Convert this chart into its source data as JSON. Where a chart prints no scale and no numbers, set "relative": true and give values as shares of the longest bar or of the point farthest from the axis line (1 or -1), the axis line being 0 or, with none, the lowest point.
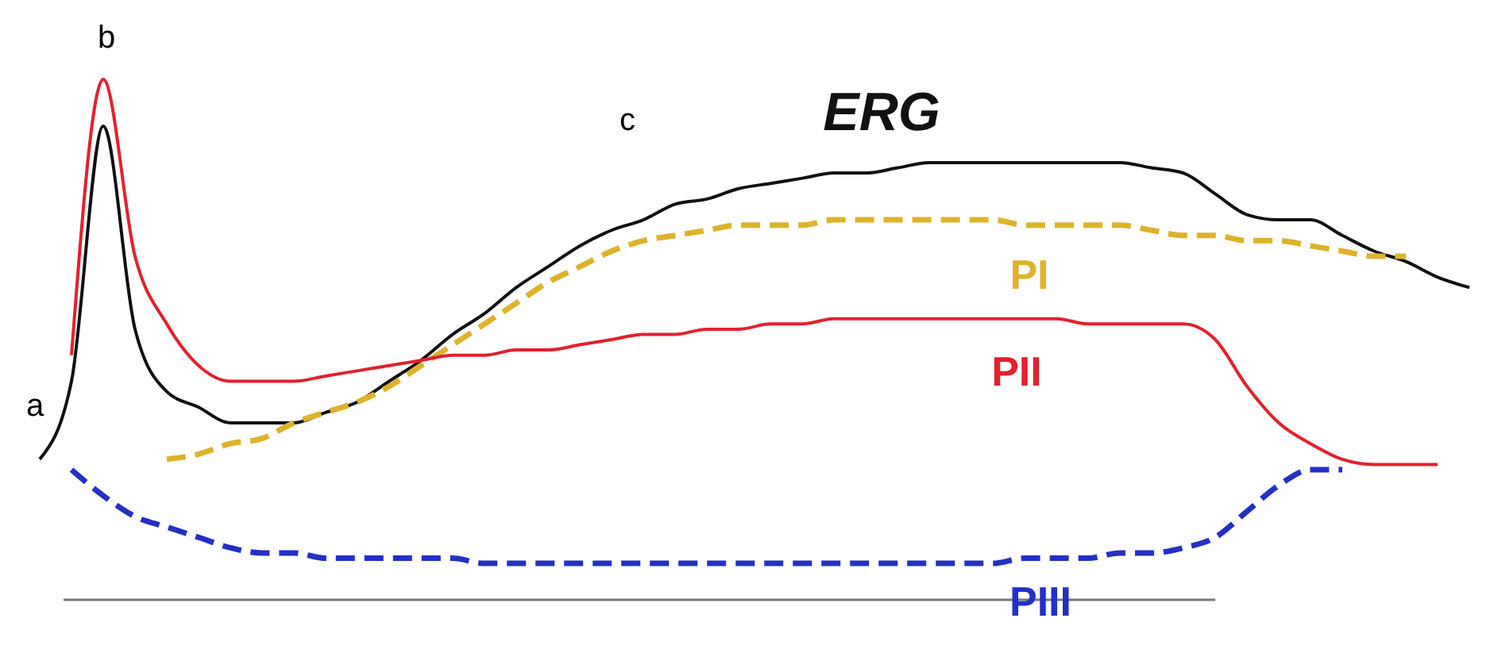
{
  "chart_data": {
    "type": "line",
    "relative": true,
    "categories": [
      null,
      null,
      null,
      null,
      null,
      null,
      null,
      null,
      null,
      null,
      null,
      null,
      null,
      null,
      null,
      null,
      null,
      null,
      null,
      null,
      null,
      null,
      null,
      null,
      null,
      null,
      null,
      null,
      null,
      null,
      null,
      null,
      null,
      null,
      null,
      null,
      null,
      null,
      null,
      null,
      null,
      null,
      null,
      null,
      null,
      null
    ],
    "annotations": [
      "a",
      "b",
      "c"
    ],
    "series": [
      {
        "name": "ERG",
        "color": "#111111",
        "line_style": "solid",
        "values": [
          0.27,
          0.42,
          0.91,
          0.52,
          0.4,
          0.37,
          0.34,
          0.34,
          0.34,
          0.36,
          0.38,
          0.42,
          0.46,
          0.51,
          0.55,
          0.6,
          0.64,
          0.68,
          0.71,
          0.73,
          0.76,
          0.77,
          0.79,
          0.8,
          0.81,
          0.82,
          0.82,
          0.83,
          0.84,
          0.84,
          0.84,
          0.84,
          0.84,
          0.84,
          0.84,
          0.83,
          0.82,
          0.78,
          0.74,
          0.73,
          0.73,
          0.7,
          0.67,
          0.65,
          0.62,
          0.6
        ]
      },
      {
        "name": "PI",
        "color": "#dfb22a",
        "line_style": "dashed",
        "values": [
          null,
          null,
          null,
          null,
          0.27,
          0.28,
          0.3,
          0.31,
          0.34,
          0.36,
          0.38,
          0.41,
          0.45,
          0.49,
          0.53,
          0.57,
          0.61,
          0.64,
          0.67,
          0.69,
          0.7,
          0.71,
          0.72,
          0.72,
          0.72,
          0.73,
          0.73,
          0.73,
          0.73,
          0.73,
          0.73,
          0.72,
          0.72,
          0.72,
          0.72,
          0.71,
          0.7,
          0.7,
          0.69,
          0.69,
          0.68,
          0.67,
          0.66,
          0.66,
          null,
          null
        ]
      },
      {
        "name": "PII",
        "color": "#e3202e",
        "line_style": "solid",
        "values": [
          null,
          0.47,
          1,
          0.66,
          0.53,
          0.45,
          0.42,
          0.42,
          0.42,
          0.43,
          0.44,
          0.45,
          0.46,
          0.47,
          0.47,
          0.48,
          0.48,
          0.49,
          0.5,
          0.51,
          0.51,
          0.52,
          0.52,
          0.53,
          0.53,
          0.54,
          0.54,
          0.54,
          0.54,
          0.54,
          0.54,
          0.54,
          0.54,
          0.53,
          0.53,
          0.53,
          0.53,
          0.5,
          0.41,
          0.34,
          0.3,
          0.27,
          0.26,
          0.26,
          0.26,
          null
        ]
      },
      {
        "name": "PIII",
        "color": "#2330c4",
        "line_style": "dashed",
        "values": [
          null,
          0.25,
          0.2,
          0.16,
          0.14,
          0.12,
          0.1,
          0.09,
          0.09,
          0.08,
          0.08,
          0.08,
          0.08,
          0.08,
          0.07,
          0.07,
          0.07,
          0.07,
          0.07,
          0.07,
          0.07,
          0.07,
          0.07,
          0.07,
          0.07,
          0.07,
          0.07,
          0.07,
          0.07,
          0.07,
          0.07,
          0.08,
          0.08,
          0.08,
          0.09,
          0.09,
          0.1,
          0.12,
          0.17,
          0.22,
          0.25,
          0.25,
          null,
          null,
          null,
          null
        ]
      }
    ]
  }
}
